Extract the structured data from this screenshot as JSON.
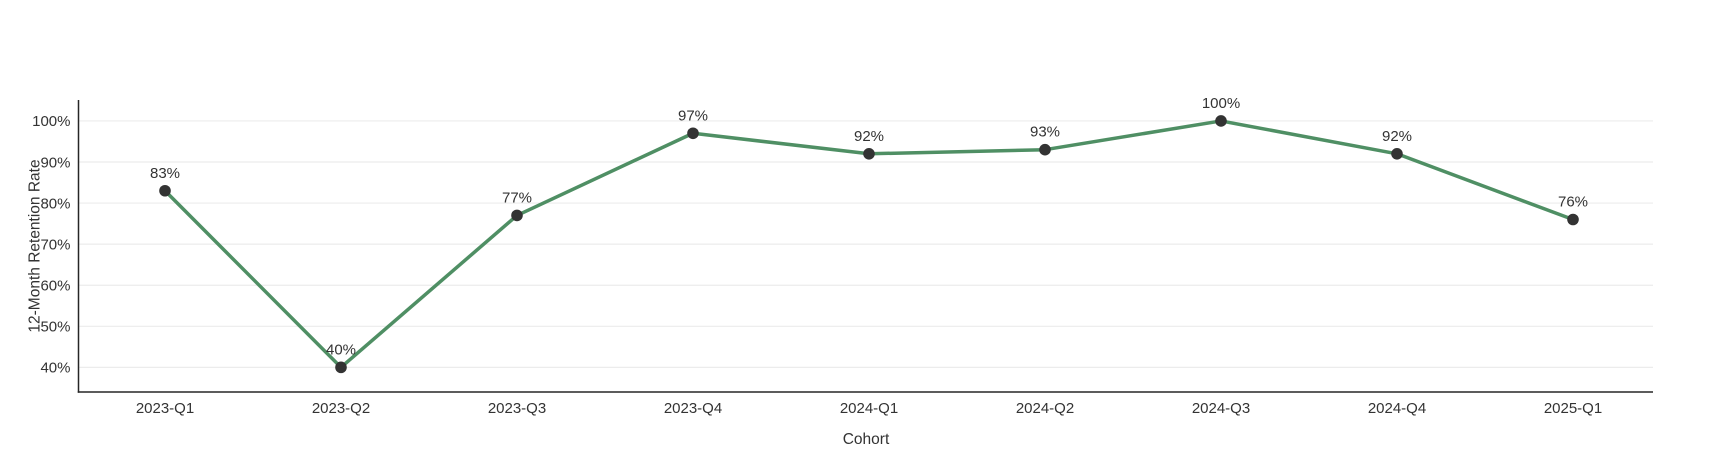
{
  "chart_data": {
    "type": "line",
    "title": "",
    "categories": [
      "2023-Q1",
      "2023-Q2",
      "2023-Q3",
      "2023-Q4",
      "2024-Q1",
      "2024-Q2",
      "2024-Q3",
      "2024-Q4",
      "2025-Q1"
    ],
    "series": [
      {
        "name": "12-Month Retention Rate",
        "values": [
          83,
          40,
          77,
          97,
          92,
          93,
          100,
          92,
          76
        ]
      }
    ],
    "data_labels": [
      "83%",
      "40%",
      "77%",
      "97%",
      "92%",
      "93%",
      "100%",
      "92%",
      "76%"
    ],
    "xlabel": "Cohort",
    "ylabel": "12-Month Retention Rate",
    "yticks": {
      "values": [
        40,
        50,
        60,
        70,
        80,
        90,
        100
      ],
      "labels": [
        "40%",
        "50%",
        "60%",
        "70%",
        "80%",
        "90%",
        "100%"
      ]
    },
    "ylim": [
      34,
      105.1
    ],
    "grid": true,
    "legend": false,
    "colors": {
      "line": "#4f8f64",
      "marker": "#333333",
      "grid": "#ececec",
      "axis": "#262626",
      "text": "#333333",
      "background": "#ffffff"
    }
  }
}
